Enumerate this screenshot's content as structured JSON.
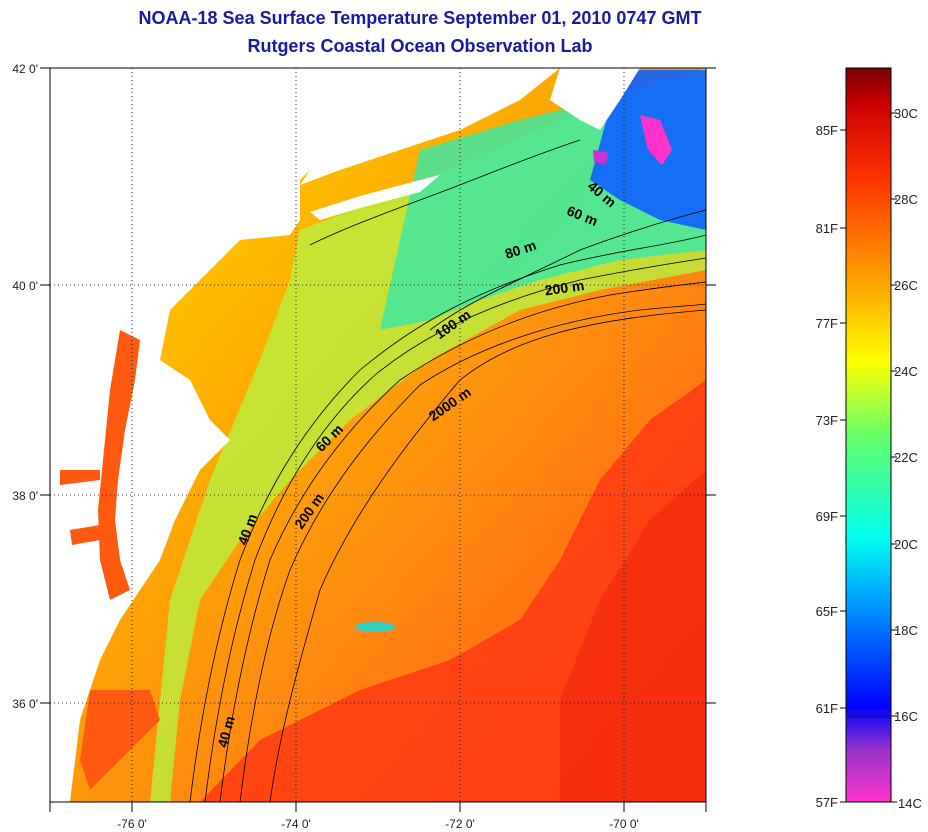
{
  "header": {
    "title": "NOAA-18 Sea Surface Temperature September 01, 2010 0747 GMT",
    "subtitle": "Rutgers Coastal Ocean Observation Lab"
  },
  "map": {
    "lat_labels": [
      "42 0'",
      "40 0'",
      "38 0'",
      "36 0'"
    ],
    "lon_labels": [
      "-76 0'",
      "-74 0'",
      "-72 0'",
      "-70 0'"
    ],
    "contour_labels": [
      "40 m",
      "60 m",
      "80 m",
      "200 m",
      "100 m",
      "2000 m",
      "60 m",
      "40 m",
      "200 m",
      "40 m"
    ],
    "land_color": "#ffffff",
    "contour_color": "#000000"
  },
  "colorbar": {
    "fahrenheit_labels": [
      "85F",
      "81F",
      "77F",
      "73F",
      "69F",
      "65F",
      "61F",
      "57F"
    ],
    "celsius_labels": [
      "30C",
      "28C",
      "26C",
      "24C",
      "22C",
      "20C",
      "18C",
      "16C",
      "14C"
    ],
    "colors": [
      "#ff33cc",
      "#9933cc",
      "#0000ff",
      "#00ccff",
      "#33ff99",
      "#ffff00",
      "#ff9900",
      "#ff3300",
      "#cc0000",
      "#7a0000"
    ]
  }
}
